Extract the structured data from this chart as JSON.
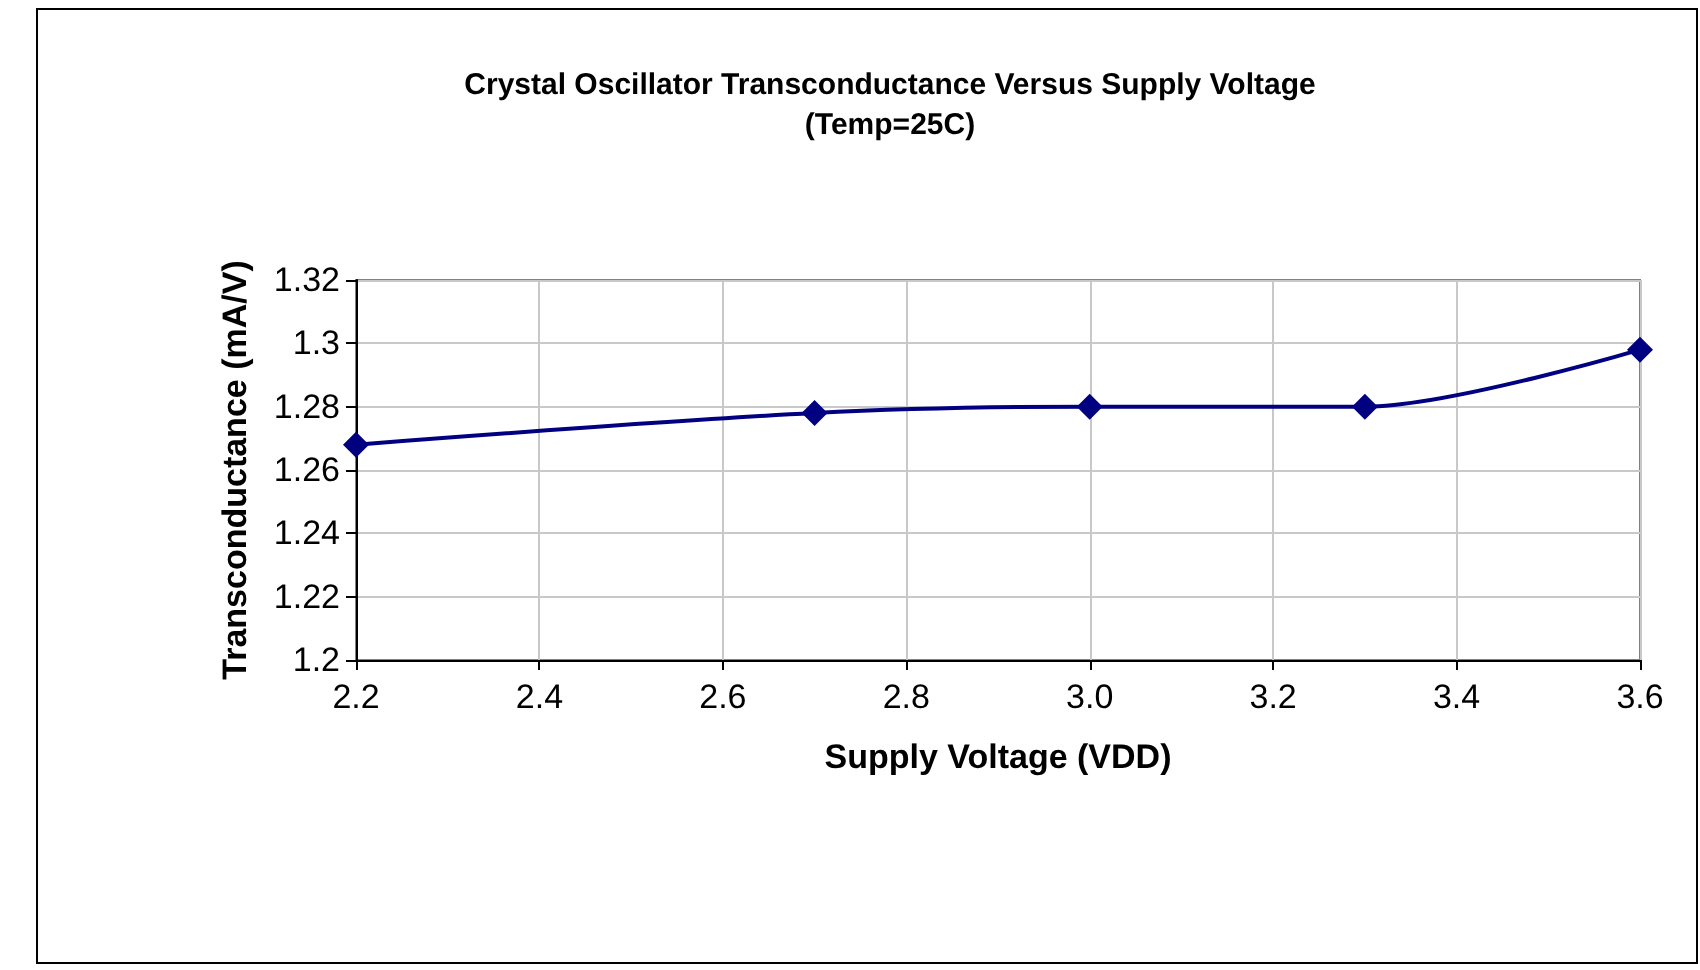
{
  "chart_data": {
    "type": "line",
    "title": "Crystal Oscillator Transconductance Versus Supply Voltage",
    "subtitle": "(Temp=25C)",
    "xlabel": "Supply Voltage (VDD)",
    "ylabel": "Transconductance (mA/V)",
    "x": [
      2.2,
      2.7,
      3.0,
      3.3,
      3.6
    ],
    "series": [
      {
        "color": "#000080",
        "values": [
          1.268,
          1.278,
          1.28,
          1.28,
          1.298
        ]
      }
    ],
    "xlim": [
      2.2,
      3.6
    ],
    "xticks": [
      2.2,
      2.4,
      2.6,
      2.8,
      {
        "value": 3,
        "label": "3.0"
      },
      3.2,
      3.4,
      3.6
    ],
    "ylim": [
      1.2,
      1.32
    ],
    "yticks": [
      1.2,
      1.22,
      1.24,
      1.26,
      1.28,
      1.3,
      1.32
    ],
    "grid": true,
    "marker": "diamond",
    "line_style": "solid"
  }
}
